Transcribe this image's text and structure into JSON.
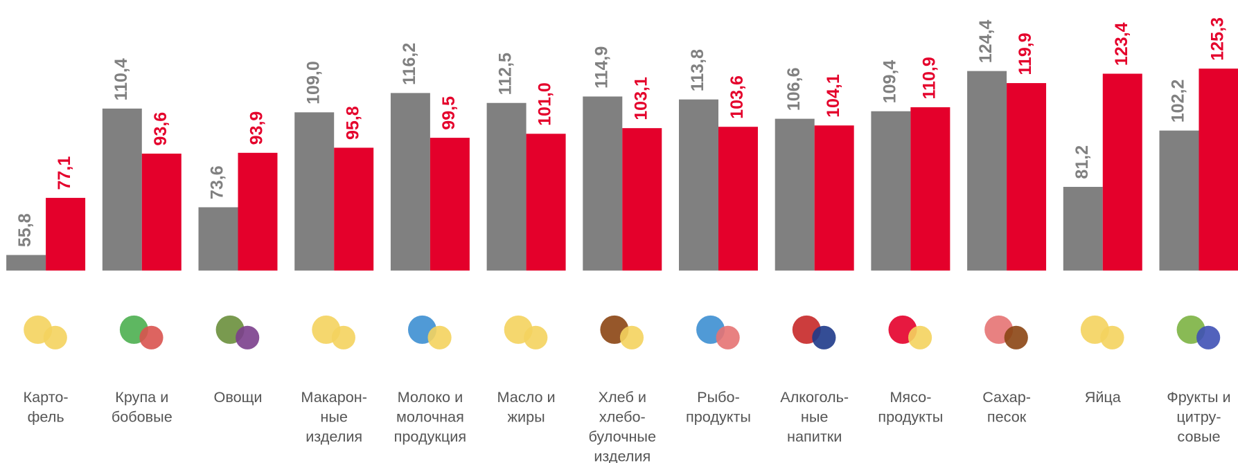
{
  "chart_data": {
    "type": "bar",
    "categories": [
      "Карто-\nфель",
      "Крупа и\nбобовые",
      "Овощи",
      "Макарон-\nные\nизделия",
      "Молоко и\nмолочная\nпродукция",
      "Масло и\nжиры",
      "Хлеб и\nхлебо-\nбулочные\nизделия",
      "Рыбо-\nпродукты",
      "Алкоголь-\nные\nнапитки",
      "Мясо-\nпродукты",
      "Сахар-\nпесок",
      "Яйца",
      "Фрукты и\nцитру-\nсовые"
    ],
    "series": [
      {
        "color": "#808080",
        "values": [
          55.8,
          110.4,
          73.6,
          109.0,
          116.2,
          112.5,
          114.9,
          113.8,
          106.6,
          109.4,
          124.4,
          81.2,
          102.2
        ],
        "value_labels": [
          "55,8",
          "110,4",
          "73,6",
          "109,0",
          "116,2",
          "112,5",
          "114,9",
          "113,8",
          "106,6",
          "109,4",
          "124,4",
          "81,2",
          "102,2"
        ]
      },
      {
        "color": "#e4002b",
        "values": [
          77.1,
          93.6,
          93.9,
          95.8,
          99.5,
          101.0,
          103.1,
          103.6,
          104.1,
          110.9,
          119.9,
          123.4,
          125.3
        ],
        "value_labels": [
          "77,1",
          "93,6",
          "93,9",
          "95,8",
          "99,5",
          "101,0",
          "103,1",
          "103,6",
          "104,1",
          "110,9",
          "119,9",
          "123,4",
          "125,3"
        ]
      }
    ],
    "ylim": [
      50,
      130
    ]
  }
}
